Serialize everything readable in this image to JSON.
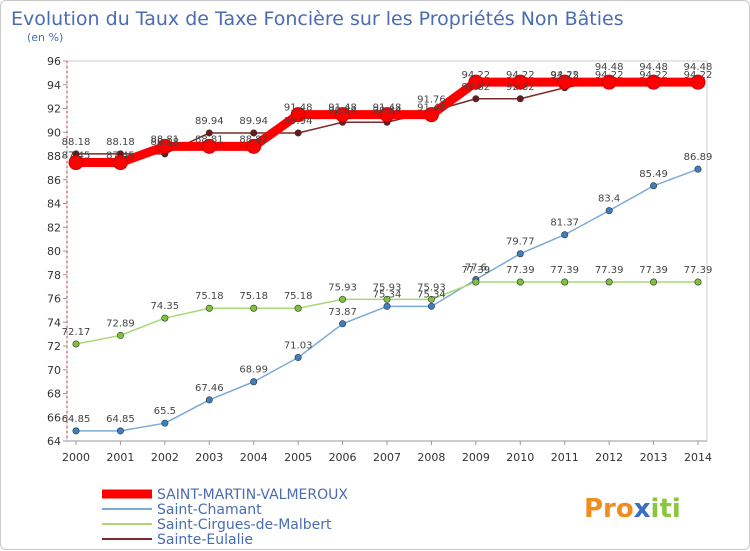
{
  "chart_data": {
    "type": "line",
    "title": "Evolution du Taux de Taxe Foncière sur les Propriétés Non Bâties",
    "subtitle": "(en %)",
    "xlabel": "",
    "ylabel": "",
    "x": [
      "2000",
      "2001",
      "2002",
      "2003",
      "2004",
      "2005",
      "2006",
      "2007",
      "2008",
      "2009",
      "2010",
      "2011",
      "2012",
      "2013",
      "2014"
    ],
    "ylim": [
      64,
      96
    ],
    "yticks": [
      64,
      66,
      68,
      70,
      72,
      74,
      76,
      78,
      80,
      82,
      84,
      86,
      88,
      90,
      92,
      94,
      96
    ],
    "grid": false,
    "legend_position": "bottom-left",
    "series": [
      {
        "name": "SAINT-MARTIN-VALMEROUX",
        "color": "#ff0000",
        "marker_color": "#ff0000",
        "values": [
          87.45,
          87.45,
          88.81,
          88.81,
          88.81,
          91.48,
          91.48,
          91.48,
          91.48,
          94.22,
          94.22,
          94.22,
          94.22,
          94.22,
          94.22
        ]
      },
      {
        "name": "Saint-Chamant",
        "color": "#7aaad8",
        "marker_color": "#3d7fc0",
        "values": [
          64.85,
          64.85,
          65.5,
          67.46,
          68.99,
          71.03,
          73.87,
          75.34,
          75.34,
          77.6,
          79.77,
          81.37,
          83.4,
          85.49,
          86.89
        ]
      },
      {
        "name": "Saint-Cirgues-de-Malbert",
        "color": "#a8d878",
        "marker_color": "#7cc43c",
        "values": [
          72.17,
          72.89,
          74.35,
          75.18,
          75.18,
          75.18,
          75.93,
          75.93,
          75.93,
          77.39,
          77.39,
          77.39,
          77.39,
          77.39,
          77.39
        ]
      },
      {
        "name": "Sainte-Eulalie",
        "color": "#7a2a2a",
        "marker_color": "#6b1a1a",
        "values": [
          88.18,
          88.18,
          88.18,
          89.94,
          89.94,
          89.94,
          90.84,
          90.84,
          91.76,
          92.82,
          92.82,
          93.75,
          94.48,
          94.48,
          94.48
        ]
      }
    ]
  },
  "logo": {
    "text": "Proxiti"
  }
}
